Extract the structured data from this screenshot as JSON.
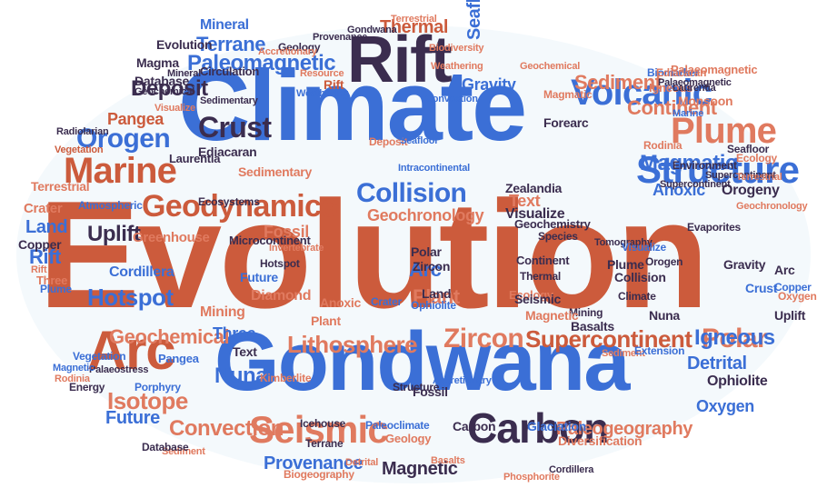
{
  "colors": {
    "orange": "#cc5b3c",
    "blue": "#3b6fd6",
    "navy": "#3b2d4f",
    "salmon": "#e07a5f",
    "light_blue": "#5b8def",
    "background": "#f4f9fc"
  },
  "words": [
    {
      "id": "evolution",
      "text": "Evolution",
      "c": "orange"
    },
    {
      "id": "climate",
      "text": "Climate",
      "c": "blue"
    },
    {
      "id": "gondwana",
      "text": "Gondwana",
      "c": "blue"
    },
    {
      "id": "rift-big",
      "text": "Rift",
      "c": "navy"
    },
    {
      "id": "arc-big",
      "text": "Arc",
      "c": "orange"
    },
    {
      "id": "structure",
      "text": "Structure",
      "c": "blue"
    },
    {
      "id": "carbon-big",
      "text": "Carbon",
      "c": "navy"
    },
    {
      "id": "seismic-big",
      "text": "Seismic",
      "c": "salmon"
    },
    {
      "id": "plume-big",
      "text": "Plume",
      "c": "salmon"
    },
    {
      "id": "marine-big",
      "text": "Marine",
      "c": "orange"
    },
    {
      "id": "volcanic-big",
      "text": "Volcanic",
      "c": "blue"
    },
    {
      "id": "geodynamics",
      "text": "Geodynamics",
      "c": "orange"
    },
    {
      "id": "collision-big",
      "text": "Collision",
      "c": "blue"
    },
    {
      "id": "zircon-big",
      "text": "Zircon",
      "c": "salmon"
    },
    {
      "id": "crust-big",
      "text": "Crust",
      "c": "navy"
    },
    {
      "id": "magmatic-big",
      "text": "Magmatic",
      "c": "blue"
    },
    {
      "id": "orogen-big",
      "text": "Orogen",
      "c": "blue"
    },
    {
      "id": "lithosphere",
      "text": "Lithosphere",
      "c": "salmon"
    },
    {
      "id": "supercontinent-big",
      "text": "Supercontinent",
      "c": "orange"
    },
    {
      "id": "polar-big",
      "text": "Polar",
      "c": "salmon"
    },
    {
      "id": "isotope-big",
      "text": "Isotope",
      "c": "salmon"
    },
    {
      "id": "hotspot-big",
      "text": "Hotspot",
      "c": "blue"
    },
    {
      "id": "paleomagnetic",
      "text": "Paleomagnetic",
      "c": "blue"
    },
    {
      "id": "terrane-big",
      "text": "Terrane",
      "c": "blue"
    },
    {
      "id": "seafloor-big",
      "text": "Seafloor",
      "c": "blue"
    },
    {
      "id": "sediment-big",
      "text": "Sediment",
      "c": "salmon"
    },
    {
      "id": "continent-big",
      "text": "Continent",
      "c": "salmon"
    },
    {
      "id": "thermal-big",
      "text": "Thermal",
      "c": "orange"
    },
    {
      "id": "deposit-big",
      "text": "Deposit",
      "c": "navy"
    },
    {
      "id": "pangea-big",
      "text": "Pangea",
      "c": "orange"
    },
    {
      "id": "ediacaran",
      "text": "Ediacaran",
      "c": "navy"
    },
    {
      "id": "laurentia",
      "text": "Laurentia",
      "c": "navy"
    },
    {
      "id": "uplift-big",
      "text": "Uplift",
      "c": "navy"
    },
    {
      "id": "land-big",
      "text": "Land",
      "c": "blue"
    },
    {
      "id": "rift-mid",
      "text": "Rift",
      "c": "blue"
    },
    {
      "id": "copper",
      "text": "Copper",
      "c": "navy"
    },
    {
      "id": "crater",
      "text": "Crater",
      "c": "salmon"
    },
    {
      "id": "cordillera",
      "text": "Cordillera",
      "c": "blue"
    },
    {
      "id": "geochemical-big",
      "text": "Geochemical",
      "c": "salmon"
    },
    {
      "id": "nuna-big",
      "text": "Nuna",
      "c": "blue"
    },
    {
      "id": "future-big",
      "text": "Future",
      "c": "blue"
    },
    {
      "id": "convection-big",
      "text": "Convection",
      "c": "salmon"
    },
    {
      "id": "provenance",
      "text": "Provenance",
      "c": "blue"
    },
    {
      "id": "magnetic-big",
      "text": "Magnetic",
      "c": "navy"
    },
    {
      "id": "paleogeography",
      "text": "Paleogeography",
      "c": "salmon"
    },
    {
      "id": "detrital-big",
      "text": "Detrital",
      "c": "blue"
    },
    {
      "id": "igneous-big",
      "text": "Igneous",
      "c": "blue"
    },
    {
      "id": "ophiolite-big",
      "text": "Ophiolite",
      "c": "navy"
    },
    {
      "id": "oxygen-big",
      "text": "Oxygen",
      "c": "blue"
    },
    {
      "id": "fossil-big",
      "text": "Fossil",
      "c": "salmon"
    },
    {
      "id": "arc-mid",
      "text": "Arc",
      "c": "blue"
    },
    {
      "id": "plant-big",
      "text": "Plant",
      "c": "salmon"
    },
    {
      "id": "gravity-big",
      "text": "Gravity",
      "c": "blue"
    },
    {
      "id": "anoxic-big",
      "text": "Anoxic",
      "c": "blue"
    },
    {
      "id": "orogeny",
      "text": "Orogeny",
      "c": "navy"
    },
    {
      "id": "text-mid",
      "text": "Text",
      "c": "salmon"
    },
    {
      "id": "visualize-mid",
      "text": "Visualize",
      "c": "navy"
    },
    {
      "id": "geochronology",
      "text": "Geochronology",
      "c": "salmon"
    },
    {
      "id": "sedimentary",
      "text": "Sedimentary",
      "c": "salmon"
    },
    {
      "id": "terrestrial",
      "text": "Terrestrial",
      "c": "salmon"
    },
    {
      "id": "greenhouse",
      "text": "Greenhouse",
      "c": "salmon"
    },
    {
      "id": "microcontinent",
      "text": "Microcontinent",
      "c": "navy"
    },
    {
      "id": "three-mid",
      "text": "Three",
      "c": "blue"
    },
    {
      "id": "mining-mid",
      "text": "Mining",
      "c": "salmon"
    },
    {
      "id": "diamond",
      "text": "Diamond",
      "c": "salmon"
    },
    {
      "id": "mineral-top",
      "text": "Mineral",
      "c": "blue"
    },
    {
      "id": "evolution-top",
      "text": "Evolution",
      "c": "navy"
    },
    {
      "id": "magma-top",
      "text": "Magma",
      "c": "navy"
    },
    {
      "id": "database",
      "text": "Database",
      "c": "navy"
    },
    {
      "id": "circulation",
      "text": "Circulation",
      "c": "navy"
    },
    {
      "id": "geology-top",
      "text": "Geology",
      "c": "navy"
    },
    {
      "id": "provenance-top",
      "text": "Provenance",
      "c": "navy"
    },
    {
      "id": "gondwana-top",
      "text": "Gondwana",
      "c": "navy"
    },
    {
      "id": "resource",
      "text": "Resource",
      "c": "salmon"
    },
    {
      "id": "weathering",
      "text": "Weathering",
      "c": "blue"
    },
    {
      "id": "rift-small",
      "text": "Rift",
      "c": "orange"
    },
    {
      "id": "forearc",
      "text": "Forearc",
      "c": "navy"
    },
    {
      "id": "convection-small",
      "text": "Convection",
      "c": "blue"
    },
    {
      "id": "palaeomagnetic",
      "text": "Palaeomagnetic",
      "c": "salmon"
    },
    {
      "id": "rodinia",
      "text": "Rodinia",
      "c": "salmon"
    },
    {
      "id": "environment",
      "text": "Environment",
      "c": "navy"
    },
    {
      "id": "monsoon",
      "text": "Monsoon",
      "c": "salmon"
    },
    {
      "id": "zealandia",
      "text": "Zealandia",
      "c": "navy"
    },
    {
      "id": "geochemistry",
      "text": "Geochemistry",
      "c": "navy"
    },
    {
      "id": "species",
      "text": "Species",
      "c": "navy"
    },
    {
      "id": "evaporites",
      "text": "Evaporites",
      "c": "navy"
    },
    {
      "id": "tomography",
      "text": "Tomography",
      "c": "navy"
    },
    {
      "id": "ecology",
      "text": "Ecology",
      "c": "salmon"
    },
    {
      "id": "mining-r",
      "text": "Mining",
      "c": "navy"
    },
    {
      "id": "basalts",
      "text": "Basalts",
      "c": "navy"
    },
    {
      "id": "biogeography",
      "text": "Biogeography",
      "c": "salmon"
    },
    {
      "id": "icehouse",
      "text": "Icehouse",
      "c": "navy"
    },
    {
      "id": "paleoclimate",
      "text": "Paleoclimate",
      "c": "blue"
    },
    {
      "id": "glaciation",
      "text": "Glaciation",
      "c": "blue"
    },
    {
      "id": "porphyry",
      "text": "Porphyry",
      "c": "blue"
    },
    {
      "id": "kimberlite",
      "text": "Kimberlite",
      "c": "salmon"
    },
    {
      "id": "vegetation",
      "text": "Vegetation",
      "c": "blue"
    },
    {
      "id": "energy",
      "text": "Energy",
      "c": "navy"
    },
    {
      "id": "palaeostress",
      "text": "Palaeostress",
      "c": "navy"
    },
    {
      "id": "rodinia-l",
      "text": "Rodinia",
      "c": "salmon"
    },
    {
      "id": "magnetic-l",
      "text": "Magnetic",
      "c": "blue"
    },
    {
      "id": "pangea-l",
      "text": "Pangea",
      "c": "blue"
    },
    {
      "id": "three-l",
      "text": "Three",
      "c": "salmon"
    },
    {
      "id": "plume-l",
      "text": "Plume",
      "c": "blue"
    },
    {
      "id": "accretionary",
      "text": "Accretionary",
      "c": "blue"
    },
    {
      "id": "diversification",
      "text": "Diversification",
      "c": "salmon"
    },
    {
      "id": "sediment-b",
      "text": "Sediment",
      "c": "salmon"
    },
    {
      "id": "detrital-b",
      "text": "Detrital",
      "c": "salmon"
    },
    {
      "id": "basalts-b",
      "text": "Basalts",
      "c": "salmon"
    },
    {
      "id": "cordillera-b",
      "text": "Cordillera",
      "c": "navy"
    },
    {
      "id": "phosphorite",
      "text": "Phosphorite",
      "c": "salmon"
    },
    {
      "id": "database-b",
      "text": "Database",
      "c": "navy"
    },
    {
      "id": "carbon-mid",
      "text": "Carbon",
      "c": "navy"
    },
    {
      "id": "geology-b",
      "text": "Geology",
      "c": "salmon"
    },
    {
      "id": "fossil-b",
      "text": "Fossil",
      "c": "navy"
    },
    {
      "id": "terrane-b",
      "text": "Terrane",
      "c": "navy"
    },
    {
      "id": "sediment-r",
      "text": "Sediment",
      "c": "salmon"
    },
    {
      "id": "extension",
      "text": "Extension",
      "c": "blue"
    },
    {
      "id": "biodiversity",
      "text": "Biodiversity",
      "c": "salmon"
    },
    {
      "id": "supercontinent-r",
      "text": "Supercontinent",
      "c": "navy"
    },
    {
      "id": "vegetation-top",
      "text": "Vegetation",
      "c": "orange"
    },
    {
      "id": "ecosystems",
      "text": "Ecosystems",
      "c": "navy"
    },
    {
      "id": "radiolarian",
      "text": "Radiolarian",
      "c": "navy"
    },
    {
      "id": "atmospheric",
      "text": "Atmospheric",
      "c": "blue"
    },
    {
      "id": "invertebrate",
      "text": "Invertebrate",
      "c": "salmon"
    },
    {
      "id": "igneous-top",
      "text": "Igneous",
      "c": "salmon"
    },
    {
      "id": "biomarker",
      "text": "Biomarker",
      "c": "blue"
    },
    {
      "id": "seafloor-r",
      "text": "Seafloor",
      "c": "navy"
    },
    {
      "id": "future-small",
      "text": "Future",
      "c": "blue"
    },
    {
      "id": "hotspot-small",
      "text": "Hotspot",
      "c": "navy"
    },
    {
      "id": "polar-small",
      "text": "Polar",
      "c": "navy"
    },
    {
      "id": "zircon-small",
      "text": "Zircon",
      "c": "navy"
    },
    {
      "id": "continent-small",
      "text": "Continent",
      "c": "navy"
    },
    {
      "id": "land-small",
      "text": "Land",
      "c": "navy"
    },
    {
      "id": "plume-small",
      "text": "Plume",
      "c": "navy"
    },
    {
      "id": "collision-small",
      "text": "Collision",
      "c": "navy"
    },
    {
      "id": "climate-small",
      "text": "Climate",
      "c": "navy"
    },
    {
      "id": "gravity-small",
      "text": "Gravity",
      "c": "navy"
    },
    {
      "id": "thermal-small",
      "text": "Thermal",
      "c": "navy"
    },
    {
      "id": "visualize-small",
      "text": "Visualize",
      "c": "blue"
    },
    {
      "id": "orogen-small",
      "text": "Orogen",
      "c": "navy"
    },
    {
      "id": "arc-r",
      "text": "Arc",
      "c": "navy"
    },
    {
      "id": "crust-r",
      "text": "Crust",
      "c": "blue"
    },
    {
      "id": "uplift-r",
      "text": "Uplift",
      "c": "navy"
    },
    {
      "id": "copper-r",
      "text": "Copper",
      "c": "blue"
    },
    {
      "id": "oxygen-r",
      "text": "Oxygen",
      "c": "salmon"
    },
    {
      "id": "magnetic-small",
      "text": "Magnetic",
      "c": "salmon"
    },
    {
      "id": "magmatic-small",
      "text": "Magmatic",
      "c": "salmon"
    },
    {
      "id": "structure-small",
      "text": "Structure",
      "c": "navy"
    },
    {
      "id": "text-small",
      "text": "Text",
      "c": "navy"
    },
    {
      "id": "crater-small",
      "text": "Crater",
      "c": "blue"
    },
    {
      "id": "anoxic-small",
      "text": "Anoxic",
      "c": "salmon"
    },
    {
      "id": "seismic-small",
      "text": "Seismic",
      "c": "navy"
    },
    {
      "id": "ophiolite-small",
      "text": "Ophiolite",
      "c": "blue"
    },
    {
      "id": "nuna-small",
      "text": "Nuna",
      "c": "navy"
    },
    {
      "id": "plant-small",
      "text": "Plant",
      "c": "salmon"
    },
    {
      "id": "ecology-small",
      "text": "Ecology",
      "c": "salmon"
    },
    {
      "id": "geochemical-tiny",
      "text": "Geochemical",
      "c": "navy"
    },
    {
      "id": "sedimentary-tiny",
      "text": "Sedimentary",
      "c": "navy"
    },
    {
      "id": "visualize-tiny",
      "text": "Visualize",
      "c": "salmon"
    },
    {
      "id": "mineral-tiny",
      "text": "Mineral",
      "c": "navy"
    },
    {
      "id": "accretionary-tiny",
      "text": "Accretionary",
      "c": "salmon"
    },
    {
      "id": "terrestrial-top",
      "text": "Terrestrial",
      "c": "salmon"
    },
    {
      "id": "weathering-top",
      "text": "Weathering",
      "c": "salmon"
    },
    {
      "id": "palaeomagnetic-tiny",
      "text": "Palaeomagnetic",
      "c": "navy"
    },
    {
      "id": "geochemical-top",
      "text": "Geochemical",
      "c": "salmon"
    },
    {
      "id": "deposit-small",
      "text": "Deposit",
      "c": "salmon"
    },
    {
      "id": "seafloor-small",
      "text": "Seafloor",
      "c": "blue"
    },
    {
      "id": "intracontinental",
      "text": "Intracontinental",
      "c": "blue"
    },
    {
      "id": "supercontinent-tiny",
      "text": "Supercontinent",
      "c": "navy"
    },
    {
      "id": "ediacaran-r",
      "text": "Ediacaran",
      "c": "salmon"
    },
    {
      "id": "geochronology-r",
      "text": "Geochronology",
      "c": "salmon"
    },
    {
      "id": "terrestrial-r",
      "text": "Terrestrial",
      "c": "salmon"
    },
    {
      "id": "laurentia-r",
      "text": "Laurentia",
      "c": "navy"
    },
    {
      "id": "marine-small",
      "text": "Marine",
      "c": "blue"
    },
    {
      "id": "rift-l",
      "text": "Rift",
      "c": "salmon"
    }
  ],
  "layout_note": ""
}
